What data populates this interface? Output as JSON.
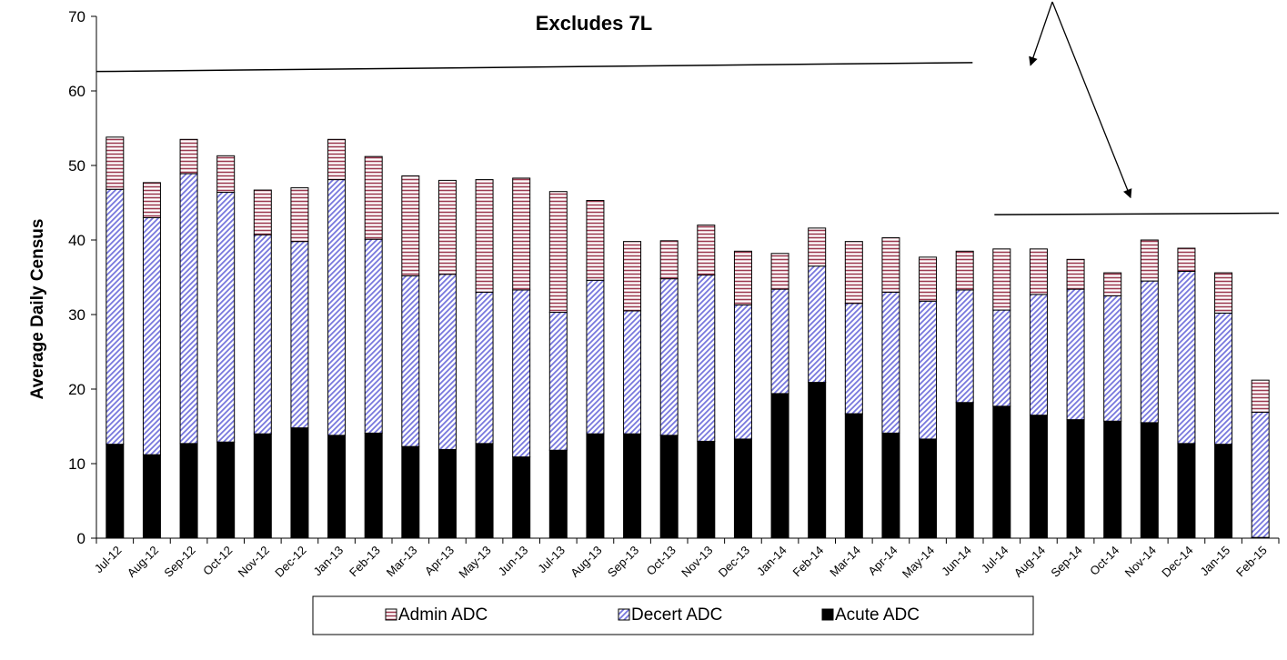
{
  "chart_data": {
    "type": "bar",
    "stacked": true,
    "title": "Excludes 7L",
    "ylabel": "Average Daily Census",
    "xlabel": "",
    "ylim": [
      0,
      70
    ],
    "yticks": [
      0,
      10,
      20,
      30,
      40,
      50,
      60,
      70
    ],
    "grid": false,
    "legend_position": "bottom",
    "categories": [
      "Jul-12",
      "Aug-12",
      "Sep-12",
      "Oct-12",
      "Nov-12",
      "Dec-12",
      "Jan-13",
      "Feb-13",
      "Mar-13",
      "Apr-13",
      "May-13",
      "Jun-13",
      "Jul-13",
      "Aug-13",
      "Sep-13",
      "Oct-13",
      "Nov-13",
      "Dec-13",
      "Jan-14",
      "Feb-14",
      "Mar-14",
      "Apr-14",
      "May-14",
      "Jun-14",
      "Jul-14",
      "Aug-14",
      "Sep-14",
      "Oct-14",
      "Nov-14",
      "Dec-14",
      "Jan-15",
      "Feb-15"
    ],
    "series": [
      {
        "name": "Acute ADC",
        "pattern": "solid",
        "color": "#000000",
        "values": [
          12.6,
          11.2,
          12.7,
          12.9,
          14.0,
          14.8,
          13.8,
          14.1,
          12.3,
          11.9,
          12.7,
          10.9,
          11.8,
          14.0,
          14.0,
          13.8,
          13.0,
          13.3,
          19.4,
          20.9,
          16.7,
          14.1,
          13.3,
          18.2,
          17.7,
          16.5,
          15.9,
          15.7,
          15.5,
          12.7,
          12.6,
          0.1
        ]
      },
      {
        "name": "Decert ADC",
        "pattern": "diagonal",
        "color": "#7777dd",
        "values": [
          34.2,
          31.8,
          36.2,
          33.5,
          26.7,
          25.0,
          34.3,
          26.0,
          22.9,
          23.5,
          20.3,
          22.4,
          18.5,
          20.6,
          16.5,
          21.0,
          22.3,
          18.0,
          14.0,
          15.6,
          14.8,
          18.9,
          18.5,
          15.1,
          12.9,
          16.2,
          17.5,
          16.8,
          19.0,
          23.1,
          17.6,
          16.8
        ]
      },
      {
        "name": "Admin ADC",
        "pattern": "horizontal",
        "color": "#9c3a50",
        "values": [
          7.0,
          4.7,
          4.6,
          4.9,
          6.0,
          7.2,
          5.4,
          11.1,
          13.4,
          12.6,
          15.1,
          15.0,
          16.2,
          10.7,
          9.3,
          5.1,
          6.7,
          7.2,
          4.8,
          5.1,
          8.3,
          7.3,
          5.9,
          5.2,
          8.2,
          6.1,
          4.0,
          3.1,
          5.5,
          3.1,
          5.4,
          4.3
        ]
      }
    ],
    "annotations": {
      "reference_lines": [
        {
          "from": {
            "category": "Jul-12",
            "y": 62.6
          },
          "to": {
            "category": "Jul-14",
            "y": 63.8
          }
        },
        {
          "from": {
            "category": "Jul-14",
            "y": 43.4
          },
          "to": {
            "category": "Feb-15",
            "y": 43.6
          }
        }
      ],
      "arrows": 2
    }
  }
}
